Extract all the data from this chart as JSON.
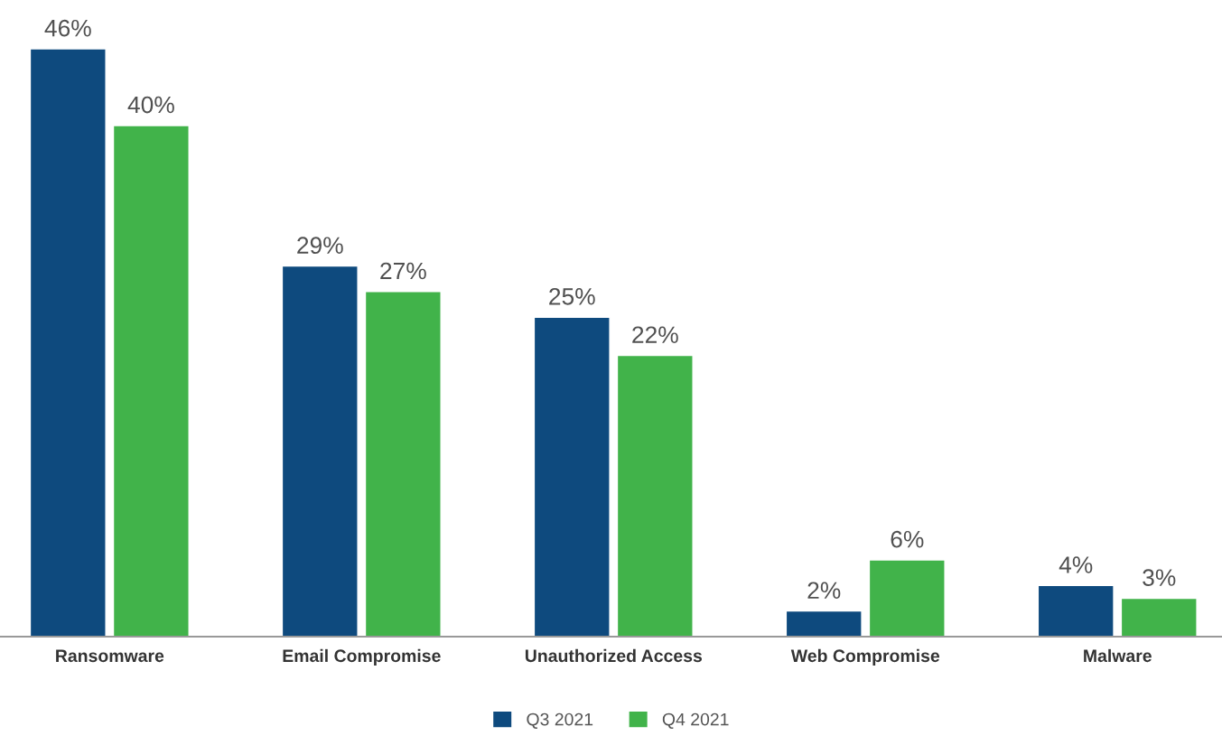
{
  "chart_data": {
    "type": "bar",
    "categories": [
      "Ransomware",
      "Email Compromise",
      "Unauthorized Access",
      "Web Compromise",
      "Malware"
    ],
    "series": [
      {
        "name": "Q3 2021",
        "color": "#0e4a7e",
        "values": [
          46,
          29,
          25,
          2,
          4
        ],
        "value_labels": [
          "46%",
          "29%",
          "25%",
          "2%",
          "4%"
        ]
      },
      {
        "name": "Q4 2021",
        "color": "#41b34a",
        "values": [
          40,
          27,
          22,
          6,
          3
        ],
        "value_labels": [
          "40%",
          "27%",
          "22%",
          "6%",
          "3%"
        ]
      }
    ],
    "grid": false,
    "legend": "bottom"
  }
}
